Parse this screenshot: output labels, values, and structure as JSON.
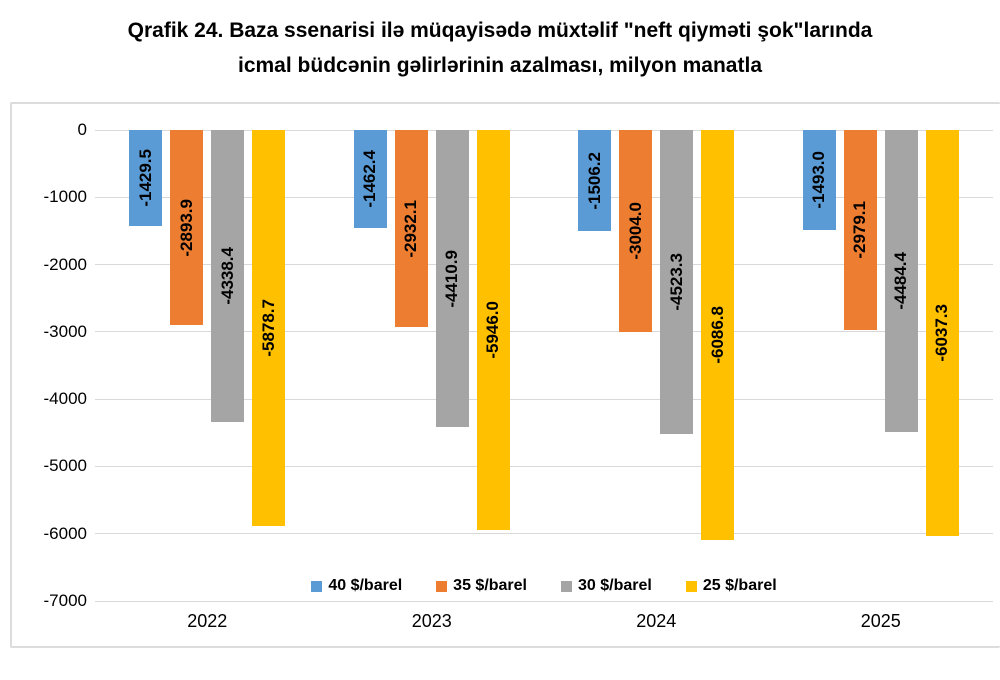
{
  "title": {
    "line1": "Qrafik 24. Baza ssenarisi ilə müqayisədə müxtəlif \"neft qiyməti şok\"larında",
    "line2": "icmal büdcənin gəlirlərinin azalması, milyon manatla"
  },
  "chart_data": {
    "type": "bar",
    "title": "Qrafik 24. Baza ssenarisi ilə müqayisədə müxtəlif \"neft qiyməti şok\"larında icmal büdcənin gəlirlərinin azalması, milyon manatla",
    "categories": [
      "2022",
      "2023",
      "2024",
      "2025"
    ],
    "series": [
      {
        "name": "40 $/barel",
        "color": "#5B9BD5",
        "values": [
          -1429.5,
          -1462.4,
          -1506.2,
          -1493.0
        ]
      },
      {
        "name": "35 $/barel",
        "color": "#ED7D31",
        "values": [
          -2893.9,
          -2932.1,
          -3004.0,
          -2979.1
        ]
      },
      {
        "name": "30 $/barel",
        "color": "#A5A5A5",
        "values": [
          -4338.4,
          -4410.9,
          -4523.3,
          -4484.4
        ]
      },
      {
        "name": "25 $/barel",
        "color": "#FFC000",
        "values": [
          -5878.7,
          -5946.0,
          -6086.8,
          -6037.3
        ]
      }
    ],
    "xlabel": "",
    "ylabel": "",
    "ylim": [
      -7000,
      0
    ],
    "yticks": [
      0,
      -1000,
      -2000,
      -3000,
      -4000,
      -5000,
      -6000,
      -7000
    ],
    "grid": true,
    "gridline_color": "#d9d9d9",
    "frame_border_color": "#dcdcdc",
    "data_label_decimals": 1,
    "data_label_rotation": -90,
    "legend_position": "bottom-inside"
  }
}
